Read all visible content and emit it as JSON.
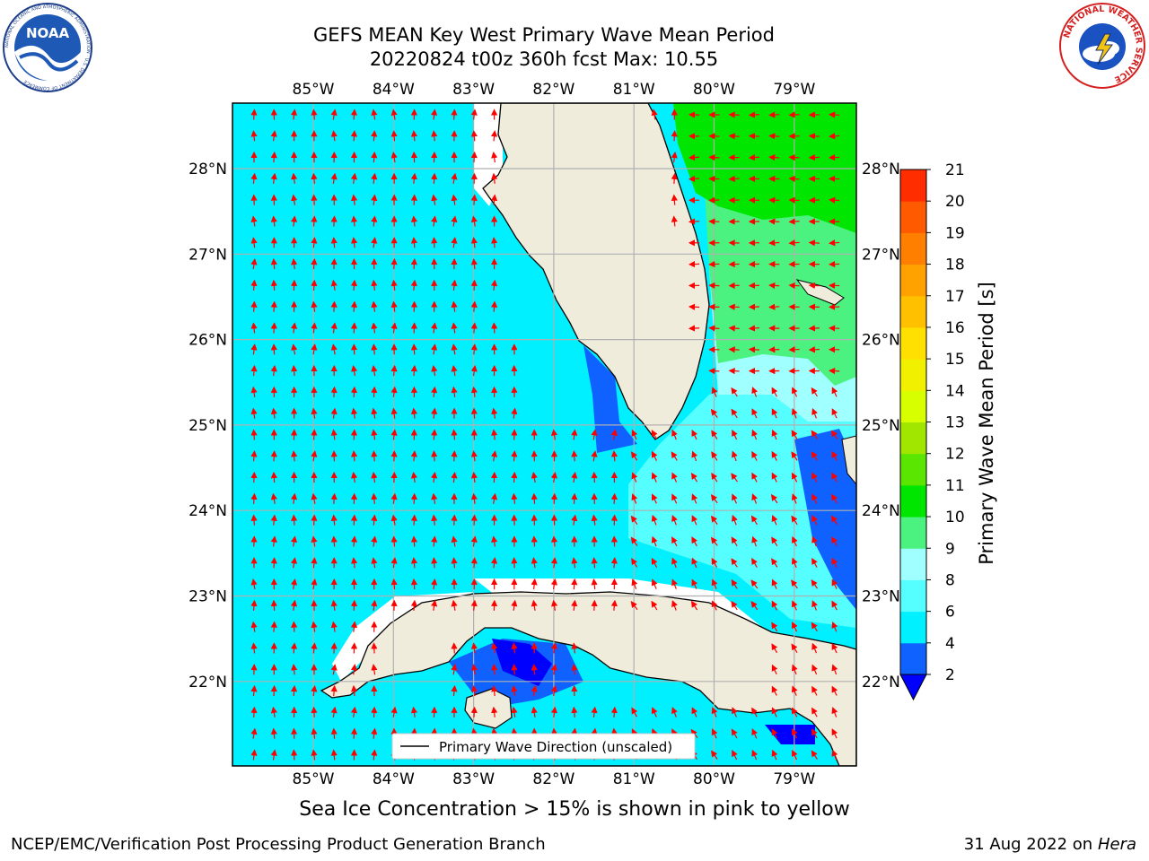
{
  "title": {
    "line1": "GEFS MEAN Key West Primary Wave Mean Period",
    "line2": "20220824 t00z 360h fcst   Max: 10.55"
  },
  "map": {
    "lon_labels": [
      "85°W",
      "84°W",
      "83°W",
      "82°W",
      "81°W",
      "80°W",
      "79°W"
    ],
    "lat_labels": [
      "28°N",
      "27°N",
      "26°N",
      "25°N",
      "24°N",
      "23°N",
      "22°N"
    ],
    "legend_label": "Primary Wave Direction (unscaled)",
    "arrow_color": "#ff0000",
    "prevailing_direction": "north (Gulf of Mexico); west (Atlantic, northeast of Bahamas)"
  },
  "colorbar": {
    "label": "Primary Wave Mean Period [s]",
    "ticks": [
      "2",
      "4",
      "6",
      "8",
      "9",
      "10",
      "11",
      "12",
      "13",
      "14",
      "15",
      "16",
      "17",
      "18",
      "19",
      "20",
      "21"
    ],
    "colors": [
      "#0f62ff",
      "#00f0ff",
      "#55ffff",
      "#a0ffff",
      "#4cf280",
      "#00e600",
      "#5ae600",
      "#a0e600",
      "#d8ff00",
      "#f0f000",
      "#ffe000",
      "#ffc000",
      "#ffa200",
      "#ff8000",
      "#ff5a00",
      "#ff2d00"
    ],
    "extend_color": "#0000ff"
  },
  "field_colors": {
    "land": "#efecdc",
    "dominant_period_band": "4-6",
    "max_period": "10.55"
  },
  "footer": {
    "subnote": "Sea Ice Concentration > 15% is shown in pink to yellow",
    "credit": "NCEP/EMC/Verification Post Processing Product Generation Branch",
    "date": "31 Aug 2022 on",
    "machine": "Hera"
  },
  "logos": {
    "noaa_text": "NOAA",
    "noaa_ring": "NATIONAL OCEANIC AND ATMOSPHERIC ADMINISTRATION · U.S. DEPARTMENT OF COMMERCE",
    "nws_ring": "NATIONAL WEATHER SERVICE"
  }
}
